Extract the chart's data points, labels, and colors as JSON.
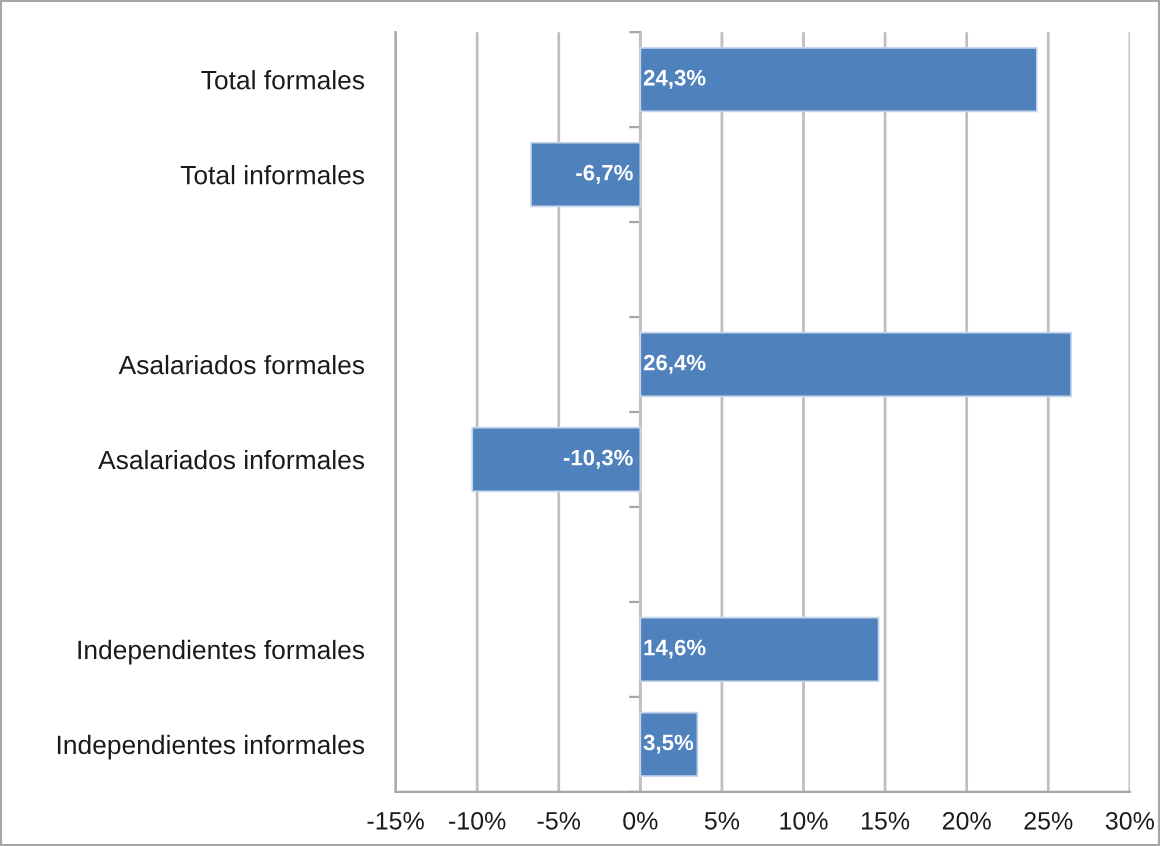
{
  "chart_data": {
    "type": "bar",
    "orientation": "horizontal",
    "categories": [
      "Total formales",
      "Total informales",
      null,
      "Asalariados formales",
      "Asalariados informales",
      null,
      "Independientes formales",
      "Independientes informales"
    ],
    "values": [
      24.3,
      -6.7,
      null,
      26.4,
      -10.3,
      null,
      14.6,
      3.5
    ],
    "value_labels": [
      "24,3%",
      "-6,7%",
      null,
      "26,4%",
      "-10,3%",
      null,
      "14,6%",
      "3,5%"
    ],
    "color": "#4f81bd",
    "xlim": [
      -15,
      30
    ],
    "xticks": [
      {
        "value": -15,
        "label": "-15%"
      },
      {
        "value": -10,
        "label": "-10%"
      },
      {
        "value": -5,
        "label": "-5%"
      },
      {
        "value": 0,
        "label": "0%"
      },
      {
        "value": 5,
        "label": "5%"
      },
      {
        "value": 10,
        "label": "10%"
      },
      {
        "value": 15,
        "label": "15%"
      },
      {
        "value": 20,
        "label": "20%"
      },
      {
        "value": 25,
        "label": "25%"
      },
      {
        "value": 30,
        "label": "30%"
      }
    ],
    "grid": "x"
  }
}
